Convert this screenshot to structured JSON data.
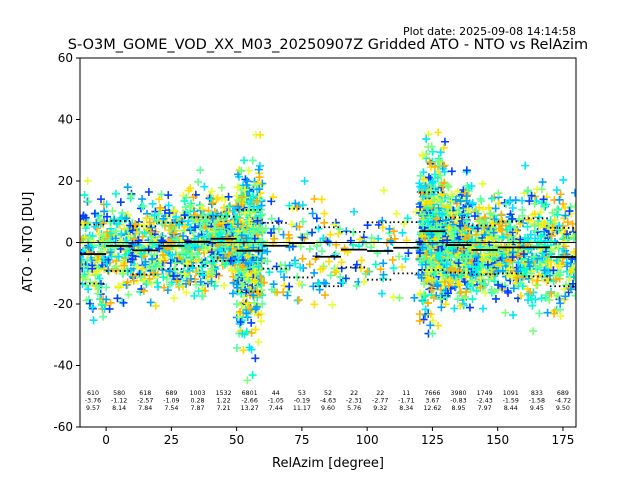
{
  "plot_date": "Plot date: 2025-09-08 14:14:58",
  "chart_data": {
    "type": "scatter",
    "title": "S-O3M_GOME_VOD_XX_M03_20250907Z Gridded ATO - NTO vs RelAzim",
    "xlabel": "RelAzim [degree]",
    "ylabel": "ATO - NTO [DU]",
    "xlim": [
      -10,
      180
    ],
    "ylim": [
      -60,
      60
    ],
    "xticks": [
      0,
      25,
      50,
      75,
      100,
      125,
      150,
      175
    ],
    "yticks": [
      -60,
      -40,
      -20,
      0,
      20,
      40,
      60
    ],
    "marker": "+",
    "zero_line": true,
    "bins": [
      {
        "center": -5,
        "count": "610",
        "mean": "-3.76",
        "std": "9.57",
        "mean_val": -3.76,
        "std_val": 9.57,
        "x0": -10,
        "x1": 0,
        "spread": [
          -30,
          20
        ]
      },
      {
        "center": 5,
        "count": "580",
        "mean": "-1.12",
        "std": "8.14",
        "mean_val": -1.12,
        "std_val": 8.14,
        "x0": 0,
        "x1": 10,
        "spread": [
          -28,
          18
        ]
      },
      {
        "center": 15,
        "count": "618",
        "mean": "-2.57",
        "std": "7.84",
        "mean_val": -2.57,
        "std_val": 7.84,
        "x0": 10,
        "x1": 20,
        "spread": [
          -25,
          18
        ]
      },
      {
        "center": 25,
        "count": "689",
        "mean": "-1.09",
        "std": "7.54",
        "mean_val": -1.09,
        "std_val": 7.54,
        "x0": 20,
        "x1": 30,
        "spread": [
          -25,
          22
        ]
      },
      {
        "center": 35,
        "count": "1003",
        "mean": "0.28",
        "std": "7.87",
        "mean_val": 0.28,
        "std_val": 7.87,
        "x0": 30,
        "x1": 40,
        "spread": [
          -30,
          25
        ]
      },
      {
        "center": 45,
        "count": "1532",
        "mean": "1.22",
        "std": "7.21",
        "mean_val": 1.22,
        "std_val": 7.21,
        "x0": 40,
        "x1": 50,
        "spread": [
          -25,
          25
        ]
      },
      {
        "center": 55,
        "count": "6801",
        "mean": "-2.66",
        "std": "13.27",
        "mean_val": -2.66,
        "std_val": 13.27,
        "x0": 50,
        "x1": 60,
        "spread": [
          -58,
          35
        ]
      },
      {
        "center": 65,
        "count": "44",
        "mean": "-1.05",
        "std": "7.44",
        "mean_val": -1.05,
        "std_val": 7.44,
        "x0": 60,
        "x1": 70,
        "spread": [
          -18,
          15
        ]
      },
      {
        "center": 75,
        "count": "53",
        "mean": "-0.19",
        "std": "11.17",
        "mean_val": -0.19,
        "std_val": 11.17,
        "x0": 70,
        "x1": 80,
        "spread": [
          -22,
          20
        ]
      },
      {
        "center": 85,
        "count": "52",
        "mean": "-4.63",
        "std": "9.60",
        "mean_val": -4.63,
        "std_val": 9.6,
        "x0": 80,
        "x1": 90,
        "spread": [
          -28,
          14
        ]
      },
      {
        "center": 95,
        "count": "22",
        "mean": "-2.31",
        "std": "5.76",
        "mean_val": -2.31,
        "std_val": 5.76,
        "x0": 90,
        "x1": 100,
        "spread": [
          -15,
          10
        ]
      },
      {
        "center": 105,
        "count": "22",
        "mean": "-2.77",
        "std": "9.32",
        "mean_val": -2.77,
        "std_val": 9.32,
        "x0": 100,
        "x1": 110,
        "spread": [
          -25,
          18
        ]
      },
      {
        "center": 115,
        "count": "11",
        "mean": "-1.71",
        "std": "8.34",
        "mean_val": -1.71,
        "std_val": 8.34,
        "x0": 110,
        "x1": 120,
        "spread": [
          -18,
          10
        ]
      },
      {
        "center": 125,
        "count": "7666",
        "mean": "3.67",
        "std": "12.62",
        "mean_val": 3.67,
        "std_val": 12.62,
        "x0": 120,
        "x1": 130,
        "spread": [
          -40,
          46
        ]
      },
      {
        "center": 135,
        "count": "3980",
        "mean": "-0.83",
        "std": "8.95",
        "mean_val": -0.83,
        "std_val": 8.95,
        "x0": 130,
        "x1": 140,
        "spread": [
          -38,
          25
        ]
      },
      {
        "center": 145,
        "count": "1749",
        "mean": "-2.43",
        "std": "7.97",
        "mean_val": -2.43,
        "std_val": 7.97,
        "x0": 140,
        "x1": 150,
        "spread": [
          -28,
          25
        ]
      },
      {
        "center": 155,
        "count": "1091",
        "mean": "-1.59",
        "std": "8.44",
        "mean_val": -1.59,
        "std_val": 8.44,
        "x0": 150,
        "x1": 160,
        "spread": [
          -28,
          28
        ]
      },
      {
        "center": 165,
        "count": "833",
        "mean": "-1.58",
        "std": "9.45",
        "mean_val": -1.58,
        "std_val": 9.45,
        "x0": 160,
        "x1": 170,
        "spread": [
          -40,
          25
        ]
      },
      {
        "center": 175,
        "count": "689",
        "mean": "-4.72",
        "std": "9.50",
        "mean_val": -4.72,
        "std_val": 9.5,
        "x0": 170,
        "x1": 180,
        "spread": [
          -30,
          24
        ]
      }
    ],
    "point_colors": [
      "#00e5ff",
      "#5cff98",
      "#7dff7a",
      "#00ffcc",
      "#e6ff33",
      "#ffe000",
      "#00a0ff",
      "#0040ff",
      "#ffb000"
    ]
  }
}
